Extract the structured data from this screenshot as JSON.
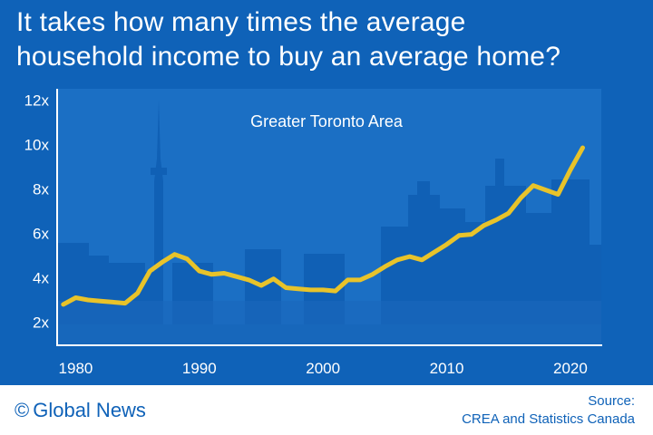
{
  "title_lines": [
    "It takes how many times the average",
    "household income to buy an average home?"
  ],
  "colors": {
    "background": "#0f62b8",
    "line": "#e8c32a",
    "text": "#ffffff",
    "footer_text": "#0f62b8"
  },
  "footer": {
    "brand_icon": "copyright-icon",
    "brand": "Global News",
    "source_label": "Source:",
    "source_text": "CREA and Statistics Canada"
  },
  "chart_data": {
    "type": "line",
    "annotation": "Greater Toronto Area",
    "xlabel": "",
    "ylabel": "",
    "xlim": [
      1978.5,
      2022.5
    ],
    "ylim": [
      1,
      12.5
    ],
    "x_ticks": [
      1980,
      1990,
      2000,
      2010,
      2020
    ],
    "x_tick_labels": [
      "1980",
      "1990",
      "2000",
      "2010",
      "2020"
    ],
    "y_ticks": [
      2,
      4,
      6,
      8,
      10,
      12
    ],
    "y_tick_labels": [
      "2x",
      "4x",
      "6x",
      "8x",
      "10x",
      "12x"
    ],
    "grid": false,
    "background_image": "toronto-skyline",
    "series": [
      {
        "x": [
          1979,
          1980,
          1981,
          1982,
          1983,
          1984,
          1985,
          1986,
          1987,
          1988,
          1989,
          1990,
          1991,
          1992,
          1993,
          1994,
          1995,
          1996,
          1997,
          1998,
          1999,
          2000,
          2001,
          2002,
          2003,
          2004,
          2005,
          2006,
          2007,
          2008,
          2009,
          2010,
          2011,
          2012,
          2013,
          2014,
          2015,
          2016,
          2017,
          2018,
          2019,
          2020,
          2021
        ],
        "values": [
          2.8,
          3.1,
          3.0,
          2.95,
          2.9,
          2.85,
          3.3,
          4.3,
          4.7,
          5.05,
          4.85,
          4.3,
          4.15,
          4.2,
          4.05,
          3.9,
          3.65,
          3.95,
          3.55,
          3.5,
          3.45,
          3.45,
          3.4,
          3.9,
          3.9,
          4.15,
          4.5,
          4.8,
          4.95,
          4.8,
          5.15,
          5.5,
          5.9,
          5.95,
          6.35,
          6.6,
          6.9,
          7.6,
          8.15,
          7.95,
          7.75,
          8.85,
          9.85
        ]
      }
    ]
  }
}
